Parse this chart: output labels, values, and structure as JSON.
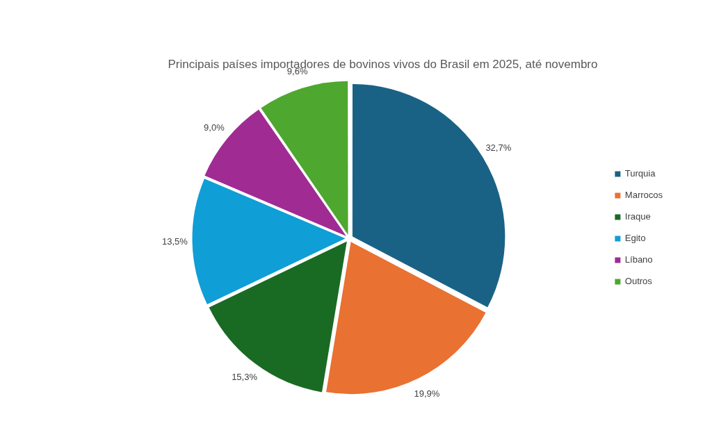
{
  "chart_data": {
    "type": "pie",
    "title": "Principais países importadores de bovinos vivos do Brasil em 2025, até novembro",
    "categories": [
      "Turquia",
      "Marrocos",
      "Iraque",
      "Egito",
      "Líbano",
      "Outros"
    ],
    "values": [
      32.7,
      19.9,
      15.3,
      13.5,
      9.0,
      9.6
    ],
    "colors": [
      "#1a6285",
      "#e97132",
      "#196b24",
      "#0f9ed5",
      "#a02b93",
      "#4ea72e"
    ],
    "value_labels": [
      "32,7%",
      "19,9%",
      "15,3%",
      "13,5%",
      "9,0%",
      "9,6%"
    ],
    "legend": "right"
  }
}
